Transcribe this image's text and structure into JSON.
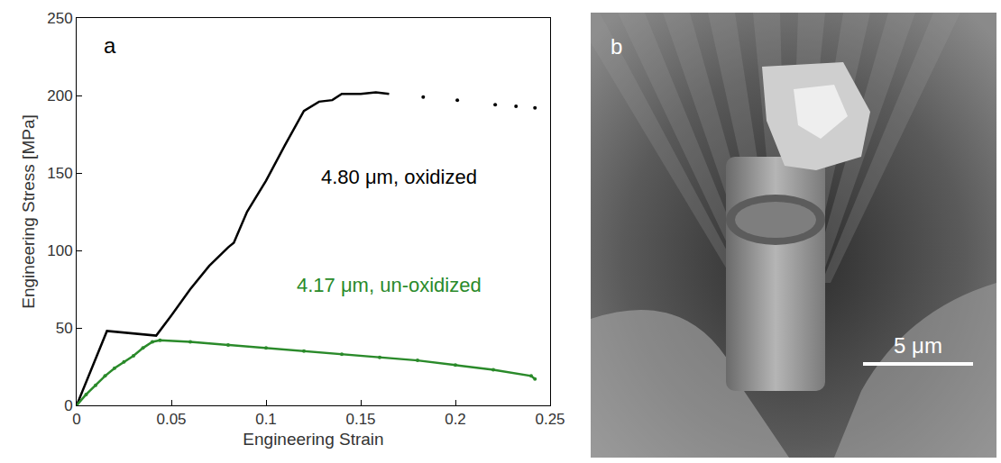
{
  "chart_data": {
    "type": "line",
    "panel_label": "a",
    "xlabel": "Engineering Strain",
    "ylabel": "Engineering Stress [MPa]",
    "xlim": [
      0,
      0.25
    ],
    "xticks": [
      0,
      0.05,
      0.1,
      0.15,
      0.2,
      0.25
    ],
    "ylim": [
      0,
      250
    ],
    "yticks": [
      0,
      50,
      100,
      150,
      200,
      250
    ],
    "annotations": [
      {
        "text": "4.80 μm, oxidized",
        "color": "#000000"
      },
      {
        "text": "4.17 μm, un-oxidized",
        "color": "#2a8a2a"
      }
    ],
    "series": [
      {
        "color": "#000000",
        "line_style": "solid",
        "marker": "none",
        "x": [
          0,
          0.016,
          0.042,
          0.05,
          0.06,
          0.07,
          0.08,
          0.083,
          0.09,
          0.1,
          0.11,
          0.12,
          0.128,
          0.135,
          0.14,
          0.15,
          0.158,
          0.165
        ],
        "values": [
          0,
          48,
          45,
          58,
          75,
          90,
          102,
          105,
          125,
          145,
          168,
          190,
          196,
          197,
          201,
          201,
          202,
          201
        ]
      },
      {
        "color": "#000000",
        "line_style": "none",
        "marker": "dot",
        "x": [
          0.183,
          0.201,
          0.221,
          0.232,
          0.242
        ],
        "values": [
          199,
          197,
          194,
          193,
          192
        ]
      },
      {
        "color": "#2a8a2a",
        "line_style": "solid",
        "marker": "dot",
        "x": [
          0,
          0.005,
          0.01,
          0.015,
          0.02,
          0.025,
          0.03,
          0.035,
          0.04,
          0.044,
          0.06,
          0.08,
          0.1,
          0.12,
          0.14,
          0.16,
          0.18,
          0.2,
          0.22,
          0.24,
          0.242
        ],
        "values": [
          0,
          7,
          13,
          19,
          24,
          28,
          32,
          37,
          41,
          42,
          41,
          39,
          37,
          35,
          33,
          31,
          29,
          26,
          23,
          19,
          17
        ]
      }
    ]
  },
  "image_panel": {
    "label": "b",
    "scale_bar": "5 μm"
  }
}
